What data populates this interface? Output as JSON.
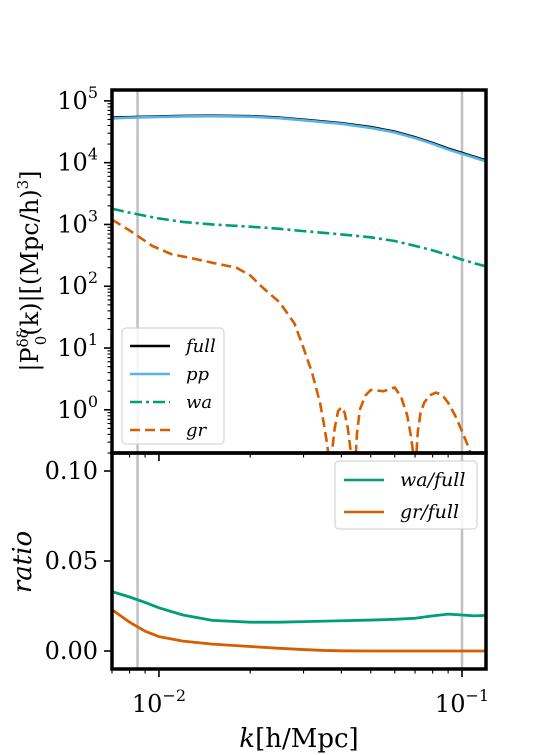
{
  "chart_data": [
    {
      "type": "line",
      "panel": "top",
      "xscale": "log",
      "yscale": "log",
      "xlim": [
        0.007,
        0.12
      ],
      "ylim": [
        0.2,
        150000
      ],
      "ylabel_parts": {
        "pre": "|P",
        "sup": "δδ",
        "sub": "0",
        "post": "(k)|[(Mpc/h)",
        "sup2": "3",
        "close": "]"
      },
      "yticks": [
        {
          "v": 1,
          "base": "10",
          "exp": "0"
        },
        {
          "v": 10,
          "base": "10",
          "exp": "1"
        },
        {
          "v": 100,
          "base": "10",
          "exp": "2"
        },
        {
          "v": 1000,
          "base": "10",
          "exp": "3"
        },
        {
          "v": 10000,
          "base": "10",
          "exp": "4"
        },
        {
          "v": 100000,
          "base": "10",
          "exp": "5"
        }
      ],
      "vlines": [
        0.0085,
        0.1
      ],
      "legend": {
        "position": "lower-left",
        "entries": [
          "full",
          "pp",
          "wa",
          "gr"
        ]
      },
      "series": [
        {
          "name": "full",
          "color": "#000000",
          "dash": "solid",
          "x": [
            0.007,
            0.008,
            0.01,
            0.012,
            0.015,
            0.02,
            0.025,
            0.03,
            0.04,
            0.05,
            0.06,
            0.07,
            0.08,
            0.09,
            0.1,
            0.11,
            0.12
          ],
          "y": [
            54000,
            55000,
            56500,
            57500,
            58000,
            57000,
            54000,
            50000,
            44000,
            38000,
            32000,
            26000,
            21000,
            17000,
            14500,
            12500,
            11000
          ]
        },
        {
          "name": "pp",
          "color": "#56B4E9",
          "dash": "solid",
          "x": [
            0.007,
            0.008,
            0.01,
            0.012,
            0.015,
            0.02,
            0.025,
            0.03,
            0.04,
            0.05,
            0.06,
            0.07,
            0.08,
            0.09,
            0.1,
            0.11,
            0.12
          ],
          "y": [
            52000,
            53500,
            55000,
            56000,
            56500,
            55500,
            52500,
            48500,
            42500,
            36500,
            30800,
            25000,
            20200,
            16300,
            13900,
            12000,
            10500
          ]
        },
        {
          "name": "wa",
          "color": "#009E73",
          "dash": "dashdot",
          "x": [
            0.007,
            0.008,
            0.01,
            0.012,
            0.015,
            0.02,
            0.025,
            0.03,
            0.04,
            0.05,
            0.06,
            0.07,
            0.08,
            0.09,
            0.1,
            0.11,
            0.12
          ],
          "y": [
            1800,
            1550,
            1250,
            1100,
            1000,
            920,
            850,
            780,
            690,
            620,
            540,
            450,
            380,
            320,
            270,
            235,
            210
          ]
        },
        {
          "name": "gr",
          "color": "#D55E00",
          "dash": "dashed",
          "x": [
            0.007,
            0.008,
            0.0095,
            0.011,
            0.013,
            0.015,
            0.018,
            0.02,
            0.022,
            0.025,
            0.028,
            0.03,
            0.032,
            0.034,
            0.035,
            0.0358,
            0.0365,
            0.037,
            0.038,
            0.039,
            0.04,
            0.041,
            0.042,
            0.043,
            0.0435,
            0.0445,
            0.045,
            0.046,
            0.048,
            0.05,
            0.055,
            0.06,
            0.063,
            0.066,
            0.068,
            0.0695,
            0.0705,
            0.0715,
            0.073,
            0.075,
            0.078,
            0.082,
            0.086,
            0.09,
            0.095,
            0.1,
            0.105,
            0.109,
            0.1105
          ],
          "y": [
            1200,
            800,
            450,
            330,
            280,
            240,
            200,
            150,
            95,
            55,
            25,
            10,
            4,
            1.3,
            0.6,
            0.3,
            0.15,
            0.15,
            0.5,
            0.95,
            1.1,
            0.9,
            0.5,
            0.2,
            0.15,
            0.15,
            0.4,
            1.0,
            1.7,
            2.1,
            2.0,
            2.3,
            1.6,
            0.8,
            0.35,
            0.15,
            0.15,
            0.45,
            0.9,
            1.3,
            1.7,
            1.9,
            1.75,
            1.3,
            0.8,
            0.45,
            0.25,
            0.15,
            0.15
          ]
        }
      ]
    },
    {
      "type": "line",
      "panel": "bottom",
      "xscale": "log",
      "xlim": [
        0.007,
        0.12
      ],
      "ylim": [
        -0.01,
        0.11
      ],
      "ylabel": "ratio",
      "yticks": [
        {
          "v": 0.0,
          "label": "0.00"
        },
        {
          "v": 0.05,
          "label": "0.05"
        },
        {
          "v": 0.1,
          "label": "0.10"
        }
      ],
      "xticks": [
        {
          "v": 0.01,
          "base": "10",
          "exp": "−2"
        },
        {
          "v": 0.1,
          "base": "10",
          "exp": "−1"
        }
      ],
      "xlabel_parts": {
        "k": "k",
        "bracket": "[h/Mpc]"
      },
      "vlines": [
        0.0085,
        0.1
      ],
      "legend": {
        "position": "top-right",
        "entries": [
          "wa/full",
          "gr/full"
        ]
      },
      "series": [
        {
          "name": "wa/full",
          "color": "#009E73",
          "x": [
            0.007,
            0.008,
            0.009,
            0.01,
            0.012,
            0.015,
            0.02,
            0.025,
            0.03,
            0.04,
            0.05,
            0.06,
            0.07,
            0.08,
            0.09,
            0.1,
            0.11,
            0.12
          ],
          "y": [
            0.033,
            0.03,
            0.027,
            0.024,
            0.02,
            0.017,
            0.016,
            0.016,
            0.0163,
            0.0168,
            0.0172,
            0.0176,
            0.0182,
            0.0195,
            0.0205,
            0.02,
            0.0195,
            0.0198
          ]
        },
        {
          "name": "gr/full",
          "color": "#D55E00",
          "x": [
            0.007,
            0.008,
            0.009,
            0.01,
            0.012,
            0.015,
            0.02,
            0.025,
            0.03,
            0.035,
            0.04,
            0.05,
            0.06,
            0.08,
            0.1,
            0.12
          ],
          "y": [
            0.023,
            0.016,
            0.011,
            0.008,
            0.0055,
            0.0038,
            0.0025,
            0.0015,
            0.0008,
            0.0003,
            0.0001,
            0.0,
            0.0,
            0.0,
            0.0,
            0.0
          ]
        }
      ]
    }
  ]
}
